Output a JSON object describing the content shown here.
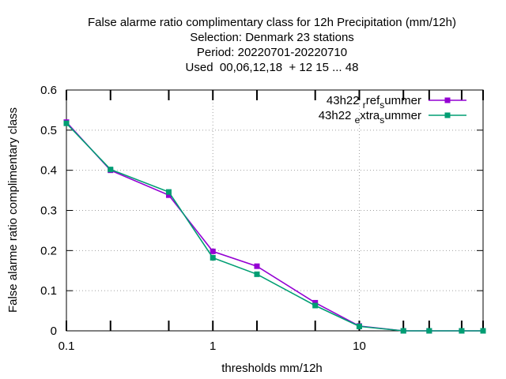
{
  "chart_data": {
    "type": "line",
    "title_lines": [
      "False alarme ratio complimentary class  for 12h Precipitation (mm/12h)",
      "Selection: Denmark     23 stations",
      "Period: 20220701-20220710",
      "Used  00,06,12,18  + 12 15 ... 48"
    ],
    "xlabel": "thresholds mm/12h",
    "ylabel": "False alarme ratio complimentary class",
    "x_scale": "log",
    "xlim": [
      0.1,
      70
    ],
    "ylim": [
      0,
      0.6
    ],
    "x_tick_labels": [
      "0.1",
      "1",
      "10"
    ],
    "x_tick_values": [
      0.1,
      1,
      10
    ],
    "y_tick_labels": [
      "0",
      "0.1",
      "0.2",
      "0.3",
      "0.4",
      "0.5",
      "0.6"
    ],
    "y_tick_values": [
      0,
      0.1,
      0.2,
      0.3,
      0.4,
      0.5,
      0.6
    ],
    "grid": true,
    "legend_position": "top-right",
    "x": [
      0.1,
      0.2,
      0.5,
      1,
      2,
      5,
      10,
      20,
      30,
      50,
      70
    ],
    "series": [
      {
        "legend_main": [
          "43h22 ",
          "ref",
          "ummer"
        ],
        "legend_sub": [
          "r",
          "s"
        ],
        "color": "#9400d3",
        "marker": "square",
        "values": [
          0.52,
          0.4,
          0.338,
          0.198,
          0.161,
          0.07,
          0.012,
          0.0,
          0.0,
          0.0,
          0.0
        ]
      },
      {
        "legend_main": [
          "43h22 ",
          "xtra",
          "ummer"
        ],
        "legend_sub": [
          "e",
          "s"
        ],
        "color": "#009e73",
        "marker": "square",
        "values": [
          0.517,
          0.402,
          0.346,
          0.182,
          0.141,
          0.063,
          0.011,
          0.0,
          0.0,
          0.0,
          0.0
        ]
      }
    ]
  }
}
